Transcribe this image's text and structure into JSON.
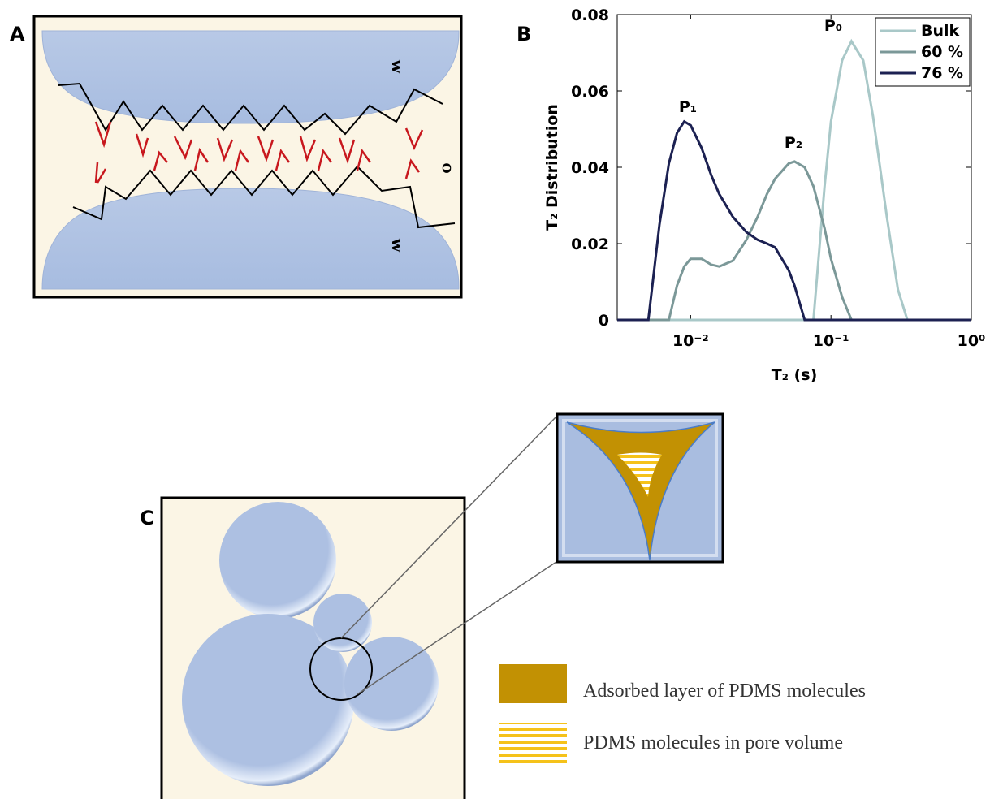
{
  "panel_labels": [
    "A",
    "B",
    "C"
  ],
  "panel_a": {
    "labels": [
      "w",
      "o",
      "w"
    ]
  },
  "chart_data": {
    "type": "line",
    "x": [
      0.003,
      0.004,
      0.005,
      0.006,
      0.007,
      0.008,
      0.009,
      0.01,
      0.012,
      0.014,
      0.016,
      0.02,
      0.025,
      0.03,
      0.035,
      0.04,
      0.05,
      0.055,
      0.065,
      0.075,
      0.09,
      0.1,
      0.12,
      0.14,
      0.17,
      0.2,
      0.25,
      0.3,
      0.35,
      0.5,
      0.7,
      1
    ],
    "series": [
      {
        "name": "Bulk",
        "color": "#a9c8c8",
        "values": [
          0,
          0,
          0,
          0,
          0,
          0,
          0,
          0,
          0,
          0,
          0,
          0,
          0,
          0,
          0,
          0,
          0,
          0,
          0,
          0,
          0.035,
          0.052,
          0.068,
          0.073,
          0.068,
          0.053,
          0.027,
          0.008,
          0,
          0,
          0,
          0
        ]
      },
      {
        "name": "60 %",
        "color": "#7b9898",
        "values": [
          0,
          0,
          0,
          0,
          0,
          0.009,
          0.014,
          0.016,
          0.016,
          0.0145,
          0.014,
          0.0155,
          0.021,
          0.027,
          0.033,
          0.037,
          0.041,
          0.0415,
          0.04,
          0.035,
          0.024,
          0.016,
          0.006,
          0,
          0,
          0,
          0,
          0,
          0,
          0,
          0,
          0
        ]
      },
      {
        "name": "76 %",
        "color": "#1c2152",
        "values": [
          0,
          0,
          0,
          0.025,
          0.041,
          0.049,
          0.052,
          0.051,
          0.045,
          0.038,
          0.033,
          0.027,
          0.023,
          0.021,
          0.02,
          0.019,
          0.013,
          0.009,
          0,
          0,
          0,
          0,
          0,
          0,
          0,
          0,
          0,
          0,
          0,
          0,
          0,
          0
        ]
      }
    ],
    "xscale": "log",
    "xlim": [
      0.003,
      1
    ],
    "xticks": [
      {
        "value": 0.01,
        "label": "10⁻²"
      },
      {
        "value": 0.1,
        "label": "10⁻¹"
      },
      {
        "value": 1,
        "label": "10⁰"
      }
    ],
    "ylim": [
      0,
      0.08
    ],
    "yticks": [
      0,
      0.02,
      0.04,
      0.06,
      0.08
    ],
    "x_label": "T₂ (s)",
    "y_label": "T₂ Distribution",
    "legend": "upper right",
    "annotations": [
      {
        "text": "P₀"
      },
      {
        "text": "P₁"
      },
      {
        "text": "P₂"
      }
    ]
  },
  "panel_c": {
    "legend": [
      "Adsorbed layer of PDMS molecules",
      "PDMS molecules in pore volume"
    ]
  }
}
